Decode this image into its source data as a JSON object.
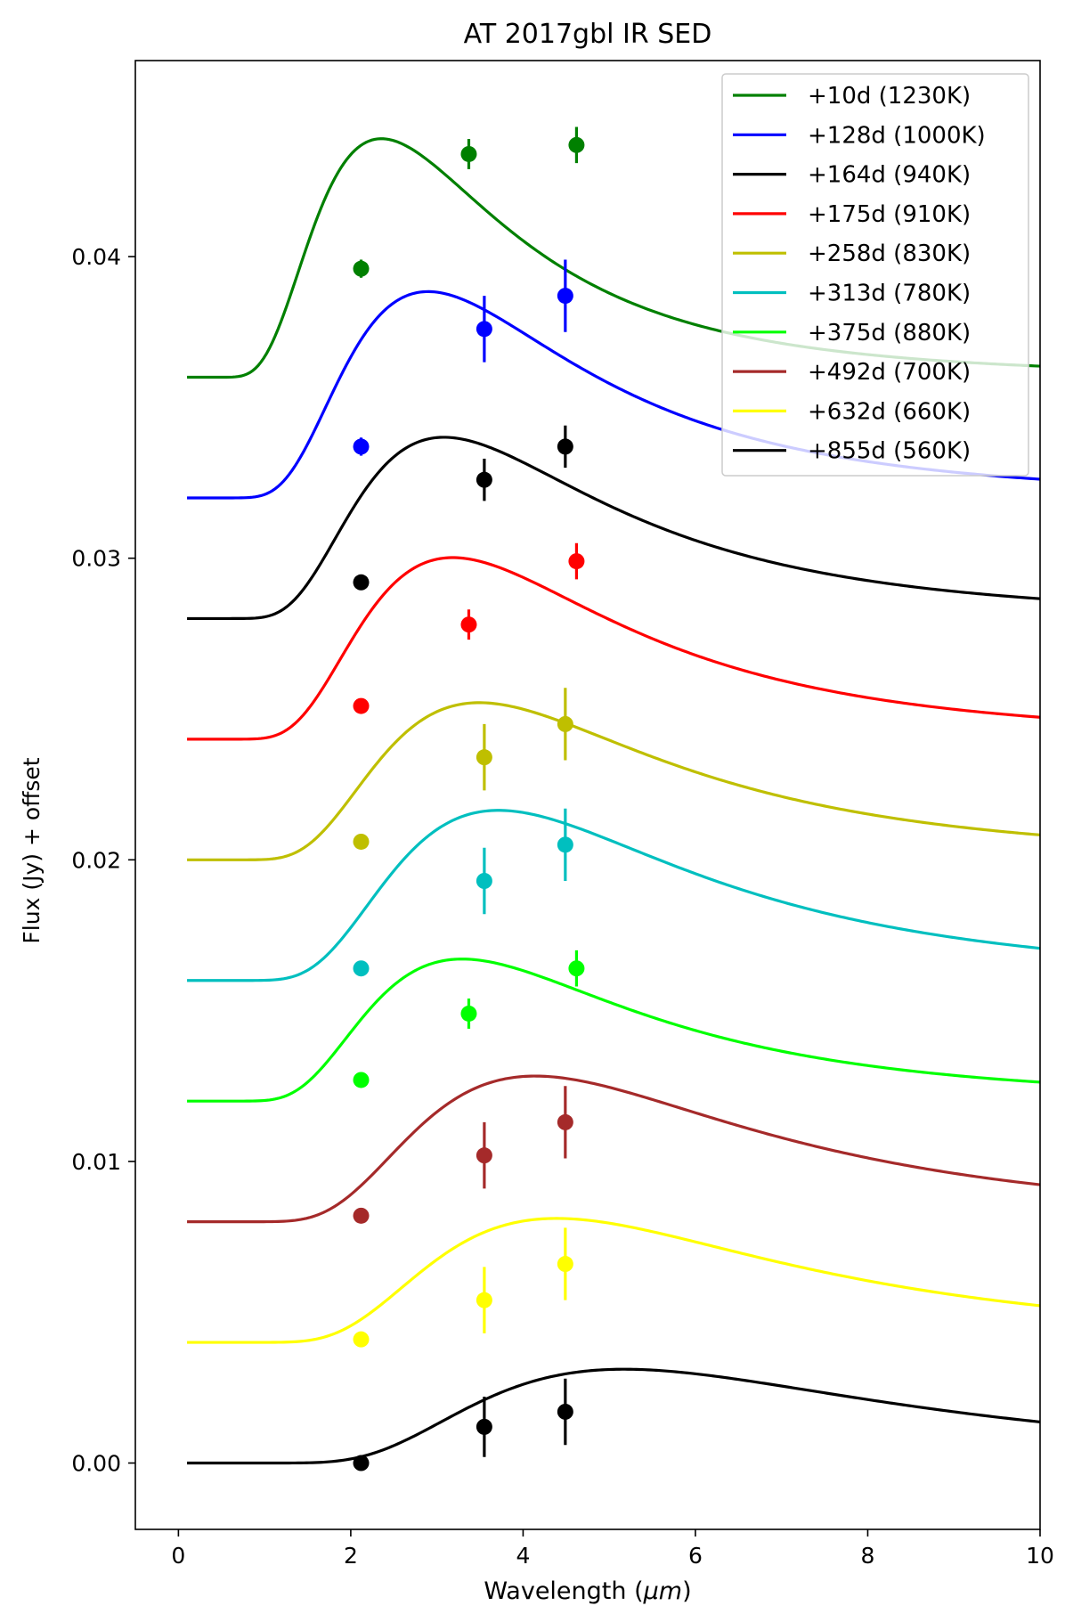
{
  "chart_data": {
    "type": "line",
    "title": "AT 2017gbl IR SED",
    "xlabel_prefix": "Wavelength (",
    "xlabel_unit": "μm",
    "xlabel_suffix": ")",
    "ylabel": "Flux (Jy) + offset",
    "xlim": [
      -0.5,
      10
    ],
    "ylim": [
      -0.0022,
      0.0465
    ],
    "xticks": [
      0,
      2,
      4,
      6,
      8,
      10
    ],
    "xtick_labels": [
      "0",
      "2",
      "4",
      "6",
      "8",
      "10"
    ],
    "yticks": [
      0.0,
      0.01,
      0.02,
      0.03,
      0.04
    ],
    "ytick_labels": [
      "0.00",
      "0.01",
      "0.02",
      "0.03",
      "0.04"
    ],
    "legend_position": "top-right",
    "curve_x_start": 0.1,
    "series": [
      {
        "name": "+10d (1230K)",
        "color": "#008000",
        "offset": 0.036,
        "temperature": 1230,
        "amplitude": 0.00791,
        "points": [
          {
            "x": 2.12,
            "y": 0.0396,
            "err": 0.0003
          },
          {
            "x": 3.37,
            "y": 0.0434,
            "err": 0.0005
          },
          {
            "x": 4.62,
            "y": 0.0437,
            "err": 0.0006
          }
        ]
      },
      {
        "name": "+128d (1000K)",
        "color": "#0000ff",
        "offset": 0.032,
        "temperature": 1000,
        "amplitude": 0.00684,
        "points": [
          {
            "x": 2.12,
            "y": 0.0337,
            "err": 0.0003
          },
          {
            "x": 3.55,
            "y": 0.0376,
            "err": 0.0011
          },
          {
            "x": 4.49,
            "y": 0.0387,
            "err": 0.0012
          }
        ]
      },
      {
        "name": "+164d (940K)",
        "color": "#000000",
        "offset": 0.028,
        "temperature": 940,
        "amplitude": 0.00601,
        "points": [
          {
            "x": 2.12,
            "y": 0.0292,
            "err": 0.0002
          },
          {
            "x": 3.55,
            "y": 0.0326,
            "err": 0.0007
          },
          {
            "x": 4.49,
            "y": 0.0337,
            "err": 0.0007
          }
        ]
      },
      {
        "name": "+175d (910K)",
        "color": "#ff0000",
        "offset": 0.024,
        "temperature": 910,
        "amplitude": 0.00602,
        "points": [
          {
            "x": 2.12,
            "y": 0.0251,
            "err": 0.0002
          },
          {
            "x": 3.37,
            "y": 0.0278,
            "err": 0.0005
          },
          {
            "x": 4.62,
            "y": 0.0299,
            "err": 0.0006
          }
        ]
      },
      {
        "name": "+258d (830K)",
        "color": "#bfbf00",
        "offset": 0.02,
        "temperature": 830,
        "amplitude": 0.00521,
        "points": [
          {
            "x": 2.12,
            "y": 0.0206,
            "err": 0.0002
          },
          {
            "x": 3.55,
            "y": 0.0234,
            "err": 0.0011
          },
          {
            "x": 4.49,
            "y": 0.0245,
            "err": 0.0012
          }
        ]
      },
      {
        "name": "+313d (780K)",
        "color": "#00bfbf",
        "offset": 0.016,
        "temperature": 780,
        "amplitude": 0.00564,
        "points": [
          {
            "x": 2.12,
            "y": 0.0164,
            "err": 0.0002
          },
          {
            "x": 3.55,
            "y": 0.0193,
            "err": 0.0011
          },
          {
            "x": 4.49,
            "y": 0.0205,
            "err": 0.0012
          }
        ]
      },
      {
        "name": "+375d (880K)",
        "color": "#00ff00",
        "offset": 0.012,
        "temperature": 880,
        "amplitude": 0.00471,
        "points": [
          {
            "x": 2.12,
            "y": 0.0127,
            "err": 0.0002
          },
          {
            "x": 3.37,
            "y": 0.0149,
            "err": 0.0005
          },
          {
            "x": 4.62,
            "y": 0.0164,
            "err": 0.0006
          }
        ]
      },
      {
        "name": "+492d (700K)",
        "color": "#a52a2a",
        "offset": 0.008,
        "temperature": 700,
        "amplitude": 0.00483,
        "points": [
          {
            "x": 2.12,
            "y": 0.0082,
            "err": 0.0002
          },
          {
            "x": 3.55,
            "y": 0.0102,
            "err": 0.0011
          },
          {
            "x": 4.49,
            "y": 0.0113,
            "err": 0.0012
          }
        ]
      },
      {
        "name": "+632d (660K)",
        "color": "#ffff00",
        "offset": 0.004,
        "temperature": 660,
        "amplitude": 0.00411,
        "points": [
          {
            "x": 2.12,
            "y": 0.0041,
            "err": 0.0002
          },
          {
            "x": 3.55,
            "y": 0.0054,
            "err": 0.0011
          },
          {
            "x": 4.49,
            "y": 0.0066,
            "err": 0.0012
          }
        ]
      },
      {
        "name": "+855d (560K)",
        "color": "#000000",
        "offset": 0.0,
        "temperature": 560,
        "amplitude": 0.00311,
        "points": [
          {
            "x": 2.12,
            "y": 0.0,
            "err": 0.0002
          },
          {
            "x": 3.55,
            "y": 0.0012,
            "err": 0.001
          },
          {
            "x": 4.49,
            "y": 0.0017,
            "err": 0.0011
          }
        ]
      }
    ]
  }
}
